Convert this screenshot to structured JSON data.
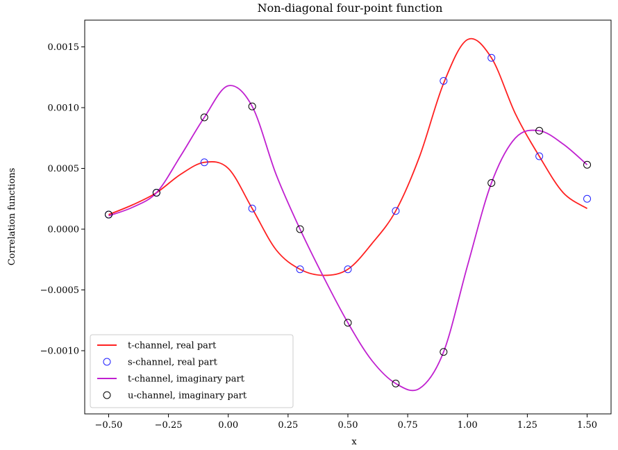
{
  "chart_data": {
    "type": "line",
    "title": "Non-diagonal four-point function",
    "xlabel": "x",
    "ylabel": "Correlation functions",
    "xlim": [
      -0.6,
      1.6
    ],
    "ylim": [
      -0.00152,
      0.00172
    ],
    "xticks": [
      -0.5,
      -0.25,
      0.0,
      0.25,
      0.5,
      0.75,
      1.0,
      1.25,
      1.5
    ],
    "xtick_labels": [
      "−0.50",
      "−0.25",
      "0.00",
      "0.25",
      "0.50",
      "0.75",
      "1.00",
      "1.25",
      "1.50"
    ],
    "yticks": [
      -0.001,
      -0.0005,
      0.0,
      0.0005,
      0.001,
      0.0015
    ],
    "ytick_labels": [
      "−0.0010",
      "−0.0005",
      "0.0000",
      "0.0005",
      "0.0010",
      "0.0015"
    ],
    "grid": false,
    "legend_position": "lower-left",
    "series": [
      {
        "name": "t-channel, real part",
        "kind": "line",
        "color": "#ff2020",
        "x": [
          -0.5,
          -0.4,
          -0.3,
          -0.2,
          -0.1,
          0.0,
          0.1,
          0.2,
          0.3,
          0.4,
          0.5,
          0.6,
          0.7,
          0.8,
          0.9,
          1.0,
          1.1,
          1.2,
          1.3,
          1.4,
          1.5
        ],
        "y": [
          0.00012,
          0.0002,
          0.0003,
          0.00045,
          0.00055,
          0.0005,
          0.00017,
          -0.00017,
          -0.00033,
          -0.00038,
          -0.00033,
          -0.00012,
          0.00015,
          0.0006,
          0.0012,
          0.00156,
          0.00141,
          0.00095,
          0.0006,
          0.0003,
          0.00017
        ]
      },
      {
        "name": "s-channel, real part",
        "kind": "scatter",
        "color": "#2020ff",
        "x": [
          -0.5,
          -0.3,
          -0.1,
          0.1,
          0.3,
          0.5,
          0.7,
          0.9,
          1.1,
          1.3,
          1.5
        ],
        "y": [
          0.00012,
          0.0003,
          0.00055,
          0.00017,
          -0.00033,
          -0.00033,
          0.00015,
          0.00122,
          0.00141,
          0.0006,
          0.00025
        ]
      },
      {
        "name": "t-channel, imaginary part",
        "kind": "line",
        "color": "#c020d0",
        "x": [
          -0.5,
          -0.4,
          -0.3,
          -0.2,
          -0.1,
          0.0,
          0.1,
          0.2,
          0.3,
          0.4,
          0.5,
          0.6,
          0.7,
          0.8,
          0.9,
          1.0,
          1.1,
          1.2,
          1.3,
          1.4,
          1.5
        ],
        "y": [
          0.00011,
          0.00018,
          0.0003,
          0.0006,
          0.00092,
          0.00118,
          0.00101,
          0.00045,
          0.0,
          -0.0004,
          -0.00077,
          -0.00108,
          -0.00127,
          -0.00131,
          -0.00101,
          -0.0003,
          0.00038,
          0.00075,
          0.00081,
          0.0007,
          0.00053
        ]
      },
      {
        "name": "u-channel, imaginary part",
        "kind": "scatter",
        "color": "#000000",
        "x": [
          -0.5,
          -0.3,
          -0.1,
          0.1,
          0.3,
          0.5,
          0.7,
          0.9,
          1.1,
          1.3,
          1.5
        ],
        "y": [
          0.00012,
          0.0003,
          0.00092,
          0.00101,
          0.0,
          -0.00077,
          -0.00127,
          -0.00101,
          0.00038,
          0.00081,
          0.00053
        ]
      }
    ]
  }
}
